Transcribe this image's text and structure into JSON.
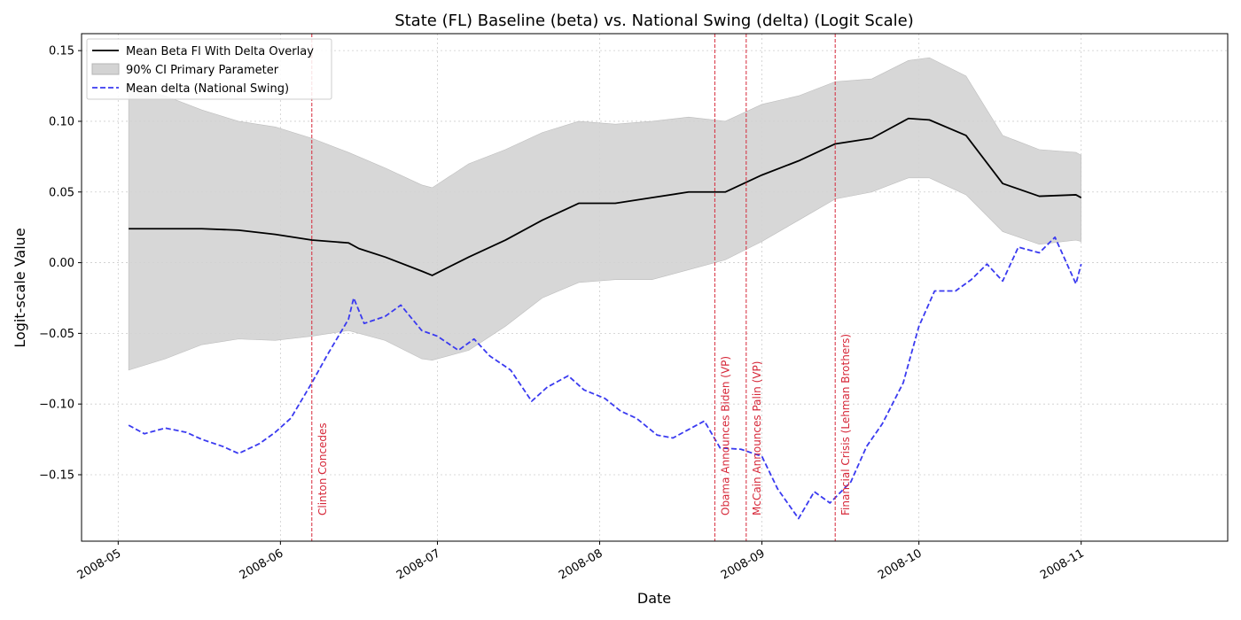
{
  "chart_data": {
    "type": "line",
    "title": "State (FL) Baseline (beta) vs. National Swing (delta) (Logit Scale)",
    "xlabel": "Date",
    "ylabel": "Logit-scale Value",
    "xlim": [
      "2008-04-24",
      "2008-11-29"
    ],
    "ylim": [
      -0.197,
      0.162
    ],
    "grid": true,
    "legend_position": "top-left",
    "x_ticks": [
      "2008-05",
      "2008-06",
      "2008-07",
      "2008-08",
      "2008-09",
      "2008-10",
      "2008-11"
    ],
    "y_ticks": [
      -0.15,
      -0.1,
      -0.05,
      0.0,
      0.05,
      0.1,
      0.15
    ],
    "y_tick_labels": [
      "−0.15",
      "−0.10",
      "−0.05",
      "0.00",
      "0.05",
      "0.10",
      "0.15"
    ],
    "series": [
      {
        "name": "Mean Beta Fl With Delta Overlay",
        "kind": "line",
        "color": "#000000",
        "style": "solid",
        "x": [
          "2008-05-03",
          "2008-05-10",
          "2008-05-17",
          "2008-05-24",
          "2008-05-31",
          "2008-06-07",
          "2008-06-14",
          "2008-06-16",
          "2008-06-21",
          "2008-06-28",
          "2008-06-30",
          "2008-07-07",
          "2008-07-14",
          "2008-07-21",
          "2008-07-28",
          "2008-08-04",
          "2008-08-11",
          "2008-08-18",
          "2008-08-25",
          "2008-09-01",
          "2008-09-08",
          "2008-09-15",
          "2008-09-22",
          "2008-09-29",
          "2008-10-03",
          "2008-10-10",
          "2008-10-17",
          "2008-10-24",
          "2008-10-31",
          "2008-11-01"
        ],
        "y": [
          0.024,
          0.024,
          0.024,
          0.023,
          0.02,
          0.016,
          0.014,
          0.01,
          0.004,
          -0.006,
          -0.009,
          0.004,
          0.016,
          0.03,
          0.042,
          0.042,
          0.046,
          0.05,
          0.05,
          0.062,
          0.072,
          0.084,
          0.088,
          0.102,
          0.101,
          0.09,
          0.056,
          0.047,
          0.048,
          0.046
        ]
      },
      {
        "name": "90% CI Primary Parameter",
        "kind": "band",
        "color": "#d3d3d3",
        "x": [
          "2008-05-03",
          "2008-05-10",
          "2008-05-17",
          "2008-05-24",
          "2008-05-31",
          "2008-06-07",
          "2008-06-14",
          "2008-06-21",
          "2008-06-28",
          "2008-06-30",
          "2008-07-07",
          "2008-07-14",
          "2008-07-21",
          "2008-07-28",
          "2008-08-04",
          "2008-08-11",
          "2008-08-18",
          "2008-08-25",
          "2008-09-01",
          "2008-09-08",
          "2008-09-15",
          "2008-09-22",
          "2008-09-29",
          "2008-10-03",
          "2008-10-10",
          "2008-10-17",
          "2008-10-24",
          "2008-10-31",
          "2008-11-01"
        ],
        "lower": [
          -0.076,
          -0.068,
          -0.058,
          -0.054,
          -0.055,
          -0.052,
          -0.048,
          -0.055,
          -0.068,
          -0.069,
          -0.062,
          -0.045,
          -0.025,
          -0.014,
          -0.012,
          -0.012,
          -0.005,
          0.002,
          0.015,
          0.03,
          0.045,
          0.05,
          0.06,
          0.06,
          0.048,
          0.022,
          0.013,
          0.016,
          0.015
        ],
        "upper": [
          0.125,
          0.118,
          0.108,
          0.1,
          0.096,
          0.088,
          0.078,
          0.067,
          0.055,
          0.053,
          0.07,
          0.08,
          0.092,
          0.1,
          0.098,
          0.1,
          0.103,
          0.1,
          0.112,
          0.118,
          0.128,
          0.13,
          0.143,
          0.145,
          0.132,
          0.09,
          0.08,
          0.078,
          0.076
        ]
      },
      {
        "name": "Mean delta (National Swing)",
        "kind": "line",
        "color": "#3a3af0",
        "style": "dashed",
        "x": [
          "2008-05-03",
          "2008-05-06",
          "2008-05-10",
          "2008-05-14",
          "2008-05-17",
          "2008-05-21",
          "2008-05-24",
          "2008-05-28",
          "2008-05-31",
          "2008-06-03",
          "2008-06-07",
          "2008-06-10",
          "2008-06-14",
          "2008-06-15",
          "2008-06-17",
          "2008-06-21",
          "2008-06-24",
          "2008-06-28",
          "2008-07-01",
          "2008-07-05",
          "2008-07-08",
          "2008-07-11",
          "2008-07-15",
          "2008-07-19",
          "2008-07-22",
          "2008-07-26",
          "2008-07-29",
          "2008-08-02",
          "2008-08-05",
          "2008-08-08",
          "2008-08-12",
          "2008-08-15",
          "2008-08-18",
          "2008-08-21",
          "2008-08-24",
          "2008-08-28",
          "2008-09-01",
          "2008-09-04",
          "2008-09-08",
          "2008-09-11",
          "2008-09-14",
          "2008-09-18",
          "2008-09-21",
          "2008-09-24",
          "2008-09-28",
          "2008-10-01",
          "2008-10-04",
          "2008-10-08",
          "2008-10-11",
          "2008-10-14",
          "2008-10-17",
          "2008-10-20",
          "2008-10-24",
          "2008-10-27",
          "2008-10-31",
          "2008-11-01"
        ],
        "y": [
          -0.115,
          -0.121,
          -0.117,
          -0.12,
          -0.125,
          -0.13,
          -0.135,
          -0.128,
          -0.12,
          -0.11,
          -0.085,
          -0.065,
          -0.04,
          -0.025,
          -0.043,
          -0.038,
          -0.03,
          -0.048,
          -0.052,
          -0.062,
          -0.054,
          -0.066,
          -0.076,
          -0.098,
          -0.088,
          -0.08,
          -0.09,
          -0.096,
          -0.105,
          -0.11,
          -0.122,
          -0.124,
          -0.118,
          -0.112,
          -0.131,
          -0.132,
          -0.137,
          -0.16,
          -0.181,
          -0.162,
          -0.17,
          -0.155,
          -0.13,
          -0.114,
          -0.085,
          -0.045,
          -0.02,
          -0.02,
          -0.012,
          -0.001,
          -0.013,
          0.011,
          0.007,
          0.018,
          -0.015,
          -0.001
        ]
      }
    ],
    "events": [
      {
        "date": "2008-06-07",
        "label": "Clinton Concedes"
      },
      {
        "date": "2008-08-23",
        "label": "Obama Announces Biden (VP)"
      },
      {
        "date": "2008-08-29",
        "label": "McCain Announces Palin (VP)"
      },
      {
        "date": "2008-09-15",
        "label": "Financial Crisis (Lehman Brothers)"
      }
    ],
    "event_color": "#d62839"
  }
}
